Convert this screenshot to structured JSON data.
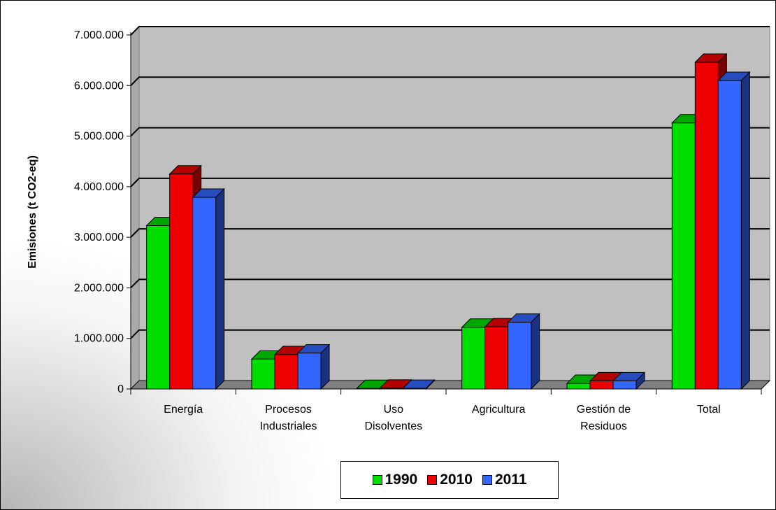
{
  "chart_data": {
    "type": "bar",
    "title": "",
    "xlabel": "",
    "ylabel": "Emisiones (t CO2-eq)",
    "ylim": [
      0,
      7000000
    ],
    "yticks": [
      0,
      1000000,
      2000000,
      3000000,
      4000000,
      5000000,
      6000000,
      7000000
    ],
    "ytick_labels": [
      "0",
      "1.000.000",
      "2.000.000",
      "3.000.000",
      "4.000.000",
      "5.000.000",
      "6.000.000",
      "7.000.000"
    ],
    "categories": [
      "Energía",
      "Procesos Industriales",
      "Uso Disolventes",
      "Agricultura",
      "Gestión de Residuos",
      "Total"
    ],
    "category_lines": [
      [
        "Energía"
      ],
      [
        "Procesos",
        "Industriales"
      ],
      [
        "Uso",
        "Disolventes"
      ],
      [
        "Agricultura"
      ],
      [
        "Gestión de",
        "Residuos"
      ],
      [
        "Total"
      ]
    ],
    "series": [
      {
        "name": "1990",
        "color": "#00dd00",
        "values": [
          3230000,
          590000,
          10000,
          1220000,
          110000,
          5260000
        ]
      },
      {
        "name": "2010",
        "color": "#ee0000",
        "values": [
          4250000,
          680000,
          15000,
          1230000,
          160000,
          6460000
        ]
      },
      {
        "name": "2011",
        "color": "#3366ff",
        "values": [
          3790000,
          710000,
          12000,
          1320000,
          160000,
          6100000
        ]
      }
    ],
    "grid": true,
    "legend_position": "bottom"
  }
}
